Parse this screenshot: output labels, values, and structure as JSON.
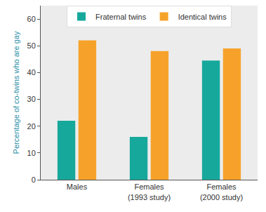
{
  "chart_data": {
    "type": "bar",
    "y_label": "Percentage of co-twins who are gay",
    "categories": [
      "Males",
      "Females\n(1993 study)",
      "Females\n(2000 study)"
    ],
    "series": [
      {
        "name": "Fraternal twins",
        "color": "#17a89c",
        "values": [
          22,
          16,
          44.5
        ]
      },
      {
        "name": "Identical twins",
        "color": "#f6a22a",
        "values": [
          52,
          48,
          49
        ]
      }
    ],
    "ylim": [
      0,
      65
    ],
    "yticks": [
      0,
      10,
      20,
      30,
      40,
      50,
      60
    ],
    "grid": false,
    "legend": "top"
  }
}
